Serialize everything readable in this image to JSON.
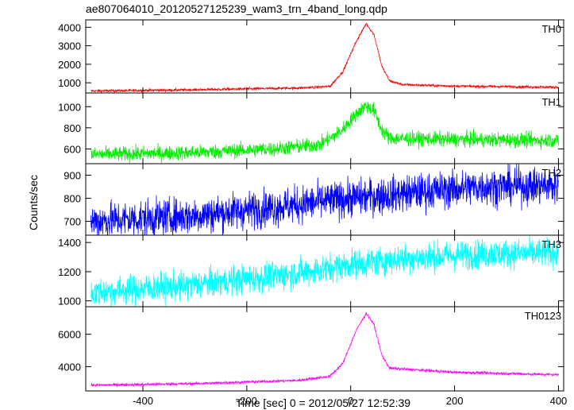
{
  "chart_data": {
    "type": "line",
    "title": "ae807064010_20120527125239_wam3_trn_4band_long.qdp",
    "xlabel": "Time [sec] 0 = 2012/05/27 12:52:39",
    "ylabel": "Counts/sec",
    "xlim": [
      -510,
      410
    ],
    "xticks": [
      -400,
      -200,
      0,
      200,
      400
    ],
    "grid": false,
    "legend": "none",
    "panels": [
      {
        "label": "TH0",
        "color": "#ff0000",
        "ylim": [
          450,
          4400
        ],
        "yticks": [
          1000,
          2000,
          3000,
          4000
        ],
        "baseline": [
          [
            -500,
            560
          ],
          [
            -300,
            620
          ],
          [
            -100,
            720
          ],
          [
            -40,
            800
          ],
          [
            -15,
            1600
          ],
          [
            10,
            3200
          ],
          [
            30,
            4200
          ],
          [
            45,
            3600
          ],
          [
            60,
            1900
          ],
          [
            75,
            1100
          ],
          [
            100,
            900
          ],
          [
            200,
            820
          ],
          [
            400,
            760
          ]
        ],
        "noise": 35
      },
      {
        "label": "TH1",
        "color": "#00ee00",
        "ylim": [
          460,
          1130
        ],
        "yticks": [
          600,
          800,
          1000
        ],
        "baseline": [
          [
            -500,
            545
          ],
          [
            -300,
            565
          ],
          [
            -150,
            600
          ],
          [
            -60,
            640
          ],
          [
            -20,
            760
          ],
          [
            15,
            950
          ],
          [
            30,
            1010
          ],
          [
            45,
            960
          ],
          [
            60,
            780
          ],
          [
            75,
            700
          ],
          [
            200,
            690
          ],
          [
            400,
            680
          ]
        ],
        "noise": 35
      },
      {
        "label": "TH2",
        "color": "#0000ff",
        "ylim": [
          640,
          950
        ],
        "yticks": [
          700,
          800,
          900
        ],
        "baseline": [
          [
            -500,
            700
          ],
          [
            -300,
            725
          ],
          [
            -150,
            760
          ],
          [
            0,
            800
          ],
          [
            150,
            830
          ],
          [
            250,
            850
          ],
          [
            400,
            855
          ]
        ],
        "noise": 40
      },
      {
        "label": "TH3",
        "color": "#00ffff",
        "ylim": [
          960,
          1450
        ],
        "yticks": [
          1000,
          1200,
          1400
        ],
        "baseline": [
          [
            -500,
            1055
          ],
          [
            -300,
            1110
          ],
          [
            -100,
            1190
          ],
          [
            0,
            1250
          ],
          [
            100,
            1290
          ],
          [
            250,
            1320
          ],
          [
            400,
            1330
          ]
        ],
        "noise": 50
      },
      {
        "label": "TH0123",
        "color": "#ff00ff",
        "ylim": [
          2500,
          7700
        ],
        "yticks": [
          4000,
          6000
        ],
        "baseline": [
          [
            -500,
            2850
          ],
          [
            -300,
            2950
          ],
          [
            -100,
            3150
          ],
          [
            -40,
            3400
          ],
          [
            -15,
            4200
          ],
          [
            10,
            6200
          ],
          [
            30,
            7300
          ],
          [
            45,
            6600
          ],
          [
            60,
            4700
          ],
          [
            75,
            3900
          ],
          [
            200,
            3650
          ],
          [
            400,
            3500
          ]
        ],
        "noise": 45
      }
    ]
  }
}
